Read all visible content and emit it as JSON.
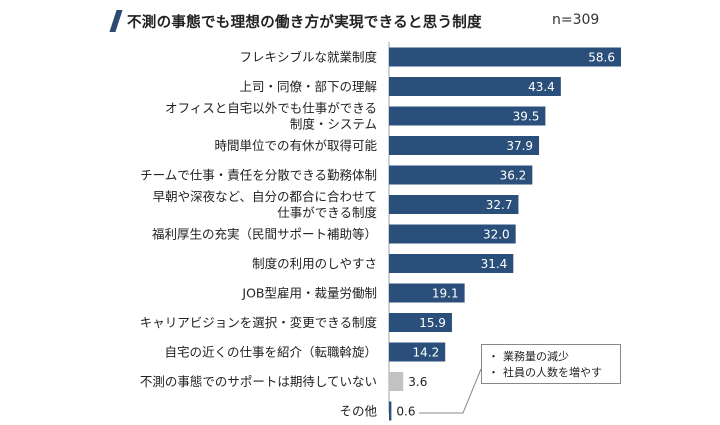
{
  "header": {
    "title": "不測の事態でも理想の働き方が実現できると思う制度",
    "sample_size": "n=309"
  },
  "colors": {
    "accent": "#2f4a72",
    "bar": "#2a4f7a",
    "bar_zero_group": "#c2c2c2"
  },
  "note": {
    "items": [
      "業務量の減少",
      "社員の人数を増やす"
    ],
    "bullet": "・"
  },
  "chart_data": {
    "type": "bar",
    "orientation": "horizontal",
    "title": "不測の事態でも理想の働き方が実現できると思う制度",
    "xlabel": "",
    "ylabel": "",
    "xlim": [
      0,
      65
    ],
    "grid": false,
    "categories": [
      [
        "フレキシブルな就業制度"
      ],
      [
        "上司・同僚・部下の理解"
      ],
      [
        "オフィスと自宅以外でも仕事ができる",
        "制度・システム"
      ],
      [
        "時間単位での有休が取得可能"
      ],
      [
        "チームで仕事・責任を分散できる勤務体制"
      ],
      [
        "早朝や深夜など、自分の都合に合わせて",
        "仕事ができる制度"
      ],
      [
        "福利厚生の充実（民間サポート補助等）"
      ],
      [
        "制度の利用のしやすさ"
      ],
      [
        "JOB型雇用・裁量労働制"
      ],
      [
        "キャリアビジョンを選択・変更できる制度"
      ],
      [
        "自宅の近くの仕事を紹介（転職斡旋）"
      ],
      [
        "不測の事態でのサポートは期待していない"
      ],
      [
        "その他"
      ]
    ],
    "values": [
      58.6,
      43.4,
      39.5,
      37.9,
      36.2,
      32.7,
      32.0,
      31.4,
      19.1,
      15.9,
      14.2,
      3.6,
      0.6
    ],
    "value_labels": [
      "58.6",
      "43.4",
      "39.5",
      "37.9",
      "36.2",
      "32.7",
      "32.0",
      "31.4",
      "19.1",
      "15.9",
      "14.2",
      "3.6",
      "0.6"
    ],
    "gray_indices": [
      11
    ]
  }
}
